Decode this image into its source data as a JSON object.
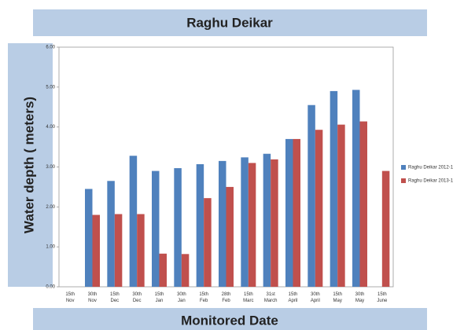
{
  "chart_data": {
    "type": "bar",
    "title": "Raghu Deikar",
    "xlabel": "Monitored Date",
    "ylabel": "Water depth ( meters)",
    "categories": [
      "15th Nov",
      "30th Nov",
      "15th Dec",
      "30th Dec",
      "15th Jan",
      "30th Jan",
      "15th Feb",
      "28th Feb",
      "15th Marc",
      "31st March",
      "15th April",
      "30th April",
      "15th May",
      "30th May",
      "15th June"
    ],
    "series": [
      {
        "name": "Raghu Deikar 2012-1",
        "color": "#4f81bd",
        "values": [
          null,
          2.45,
          2.65,
          3.28,
          2.9,
          2.97,
          3.07,
          3.15,
          3.24,
          3.33,
          3.7,
          4.55,
          4.9,
          4.93,
          null
        ]
      },
      {
        "name": "Raghu Deikar 2013-1",
        "color": "#c0504d",
        "values": [
          null,
          1.8,
          1.82,
          1.82,
          0.83,
          0.82,
          2.22,
          2.5,
          3.1,
          3.19,
          3.7,
          3.93,
          4.06,
          4.14,
          2.9
        ]
      }
    ],
    "ylim": [
      0,
      6
    ],
    "yticks": [
      {
        "value": 0,
        "label": "0.00"
      },
      {
        "value": 1,
        "label": "1.00"
      },
      {
        "value": 2,
        "label": "2.00"
      },
      {
        "value": 3,
        "label": "3.00"
      },
      {
        "value": 4,
        "label": "4.00"
      },
      {
        "value": 5,
        "label": "5.00"
      },
      {
        "value": 6,
        "label": "6.00"
      }
    ],
    "legend": "right"
  }
}
